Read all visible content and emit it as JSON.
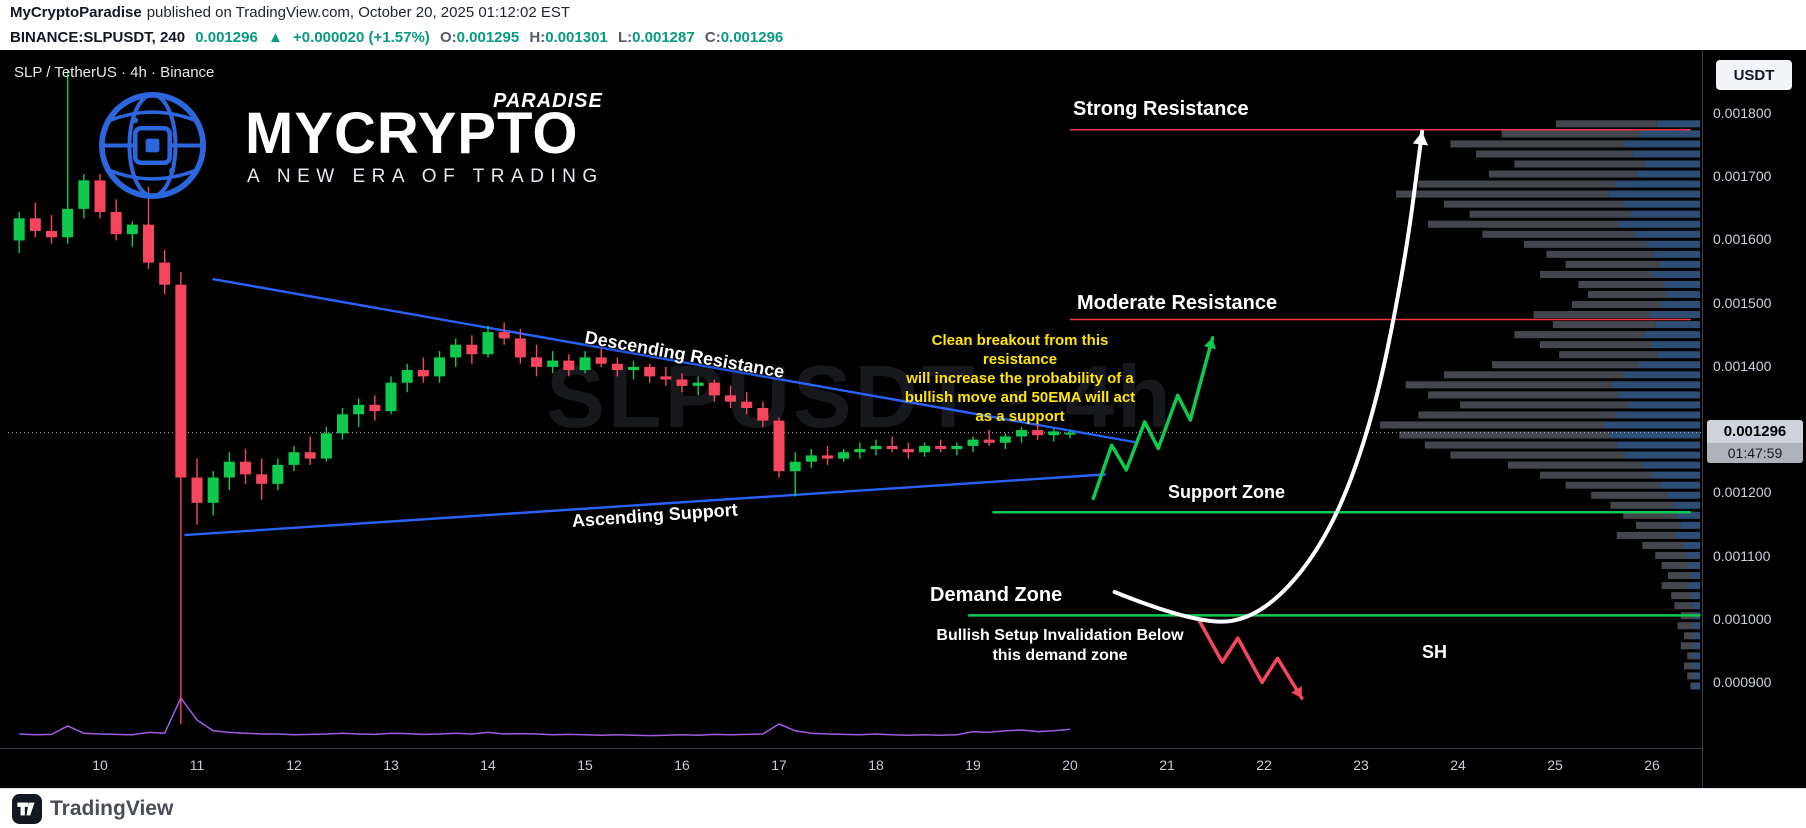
{
  "meta_bar": {
    "author": "MyCryptoParadise",
    "published": "published on TradingView.com, October 20, 2025 01:12:02 EST"
  },
  "symbol_bar": {
    "symbol": "BINANCE:SLPUSDT, 240",
    "last": "0.001296",
    "change_arrow": "▲",
    "change": "+0.000020 (+1.57%)",
    "o_label": "O:",
    "o": "0.001295",
    "h_label": "H:",
    "h": "0.001301",
    "l_label": "L:",
    "l": "0.001287",
    "c_label": "C:",
    "c": "0.001296"
  },
  "chart_header": {
    "legend": "SLP / TetherUS · 4h · Binance"
  },
  "logo": {
    "brand_top": "PARADISE",
    "brand_main": "MYCRYPTO",
    "tagline": "A NEW ERA OF TRADING"
  },
  "watermark": "SLPUSDT · 4h",
  "axis": {
    "currency_button": "USDT",
    "last_price_badge": {
      "price": "0.001296",
      "countdown": "01:47:59"
    }
  },
  "annotations": {
    "strong_resistance_label": "Strong Resistance",
    "moderate_resistance_label": "Moderate Resistance",
    "support_zone_label": "Support Zone",
    "demand_zone_label": "Demand Zone",
    "descending_resistance_label": "Descending Resistance",
    "ascending_support_label": "Ascending Support",
    "breakout_note_lines": [
      "Clean breakout from this resistance",
      "will increase the probability of a",
      "bullish move and 50EMA will act",
      "as a support"
    ],
    "invalidation_note_lines": [
      "Bullish Setup Invalidation Below",
      "this demand zone"
    ],
    "sh_label": "SH"
  },
  "footer": {
    "brand": "TradingView"
  },
  "colors": {
    "bullish": "#0ecb4e",
    "bearish": "#f6465d",
    "trendline": "#2962ff",
    "resistance": "#f23645",
    "support": "#0ecb4e",
    "note_yellow": "#ffe500",
    "volume_line": "#a05ce0",
    "header_green": "#089981"
  },
  "chart_data": {
    "type": "candlestick",
    "title": "SLP / TetherUS · 4h · Binance",
    "symbol": "BINANCE:SLPUSDT",
    "interval": "4h",
    "x_label": "October 2025 (day of month)",
    "y_range": [
      0.00082,
      0.00191
    ],
    "last_price": 0.001296,
    "first_candle_day": 9.1667,
    "candle_interval_days": 0.16667,
    "colors": {
      "up": "#0ecb4e",
      "down": "#f6465d"
    },
    "y_ticks": [
      {
        "label": "0.001800",
        "price": 0.0018
      },
      {
        "label": "0.001700",
        "price": 0.0017
      },
      {
        "label": "0.001600",
        "price": 0.0016
      },
      {
        "label": "0.001500",
        "price": 0.0015
      },
      {
        "label": "0.001400",
        "price": 0.0014
      },
      {
        "label": "0.001200",
        "price": 0.0012
      },
      {
        "label": "0.001100",
        "price": 0.0011
      },
      {
        "label": "0.001000",
        "price": 0.001
      },
      {
        "label": "0.000900",
        "price": 0.0009
      }
    ],
    "x_ticks": [
      {
        "label": "10",
        "day": 10
      },
      {
        "label": "11",
        "day": 11
      },
      {
        "label": "12",
        "day": 12
      },
      {
        "label": "13",
        "day": 13
      },
      {
        "label": "14",
        "day": 14
      },
      {
        "label": "15",
        "day": 15
      },
      {
        "label": "16",
        "day": 16
      },
      {
        "label": "17",
        "day": 17
      },
      {
        "label": "18",
        "day": 18
      },
      {
        "label": "19",
        "day": 19
      },
      {
        "label": "20",
        "day": 20
      },
      {
        "label": "21",
        "day": 21
      },
      {
        "label": "22",
        "day": 22
      },
      {
        "label": "23",
        "day": 23
      },
      {
        "label": "24",
        "day": 24
      },
      {
        "label": "25",
        "day": 25
      },
      {
        "label": "26",
        "day": 26
      }
    ],
    "candles": [
      [
        0.0016,
        0.001645,
        0.00158,
        0.001635
      ],
      [
        0.001635,
        0.00166,
        0.001605,
        0.001615
      ],
      [
        0.001615,
        0.00164,
        0.001595,
        0.001605
      ],
      [
        0.001605,
        0.00187,
        0.001595,
        0.00165
      ],
      [
        0.00165,
        0.001705,
        0.001635,
        0.001695
      ],
      [
        0.001695,
        0.001705,
        0.001635,
        0.001645
      ],
      [
        0.001645,
        0.001665,
        0.0016,
        0.00161
      ],
      [
        0.00161,
        0.00163,
        0.00159,
        0.001625
      ],
      [
        0.001625,
        0.001685,
        0.001555,
        0.001565
      ],
      [
        0.001565,
        0.001585,
        0.001515,
        0.00153
      ],
      [
        0.00153,
        0.00155,
        0.000835,
        0.001225
      ],
      [
        0.001225,
        0.001255,
        0.00115,
        0.001185
      ],
      [
        0.001185,
        0.001235,
        0.001165,
        0.001225
      ],
      [
        0.001225,
        0.001265,
        0.001205,
        0.00125
      ],
      [
        0.00125,
        0.00127,
        0.001215,
        0.00123
      ],
      [
        0.00123,
        0.001255,
        0.00119,
        0.001215
      ],
      [
        0.001215,
        0.001255,
        0.001205,
        0.001245
      ],
      [
        0.001245,
        0.001275,
        0.001235,
        0.001265
      ],
      [
        0.001265,
        0.00129,
        0.001245,
        0.001255
      ],
      [
        0.001255,
        0.001305,
        0.00125,
        0.001295
      ],
      [
        0.001295,
        0.001335,
        0.001285,
        0.001325
      ],
      [
        0.001325,
        0.00135,
        0.001305,
        0.00134
      ],
      [
        0.00134,
        0.001355,
        0.001315,
        0.00133
      ],
      [
        0.00133,
        0.001385,
        0.001325,
        0.001375
      ],
      [
        0.001375,
        0.001405,
        0.00136,
        0.001395
      ],
      [
        0.001395,
        0.001415,
        0.001375,
        0.001385
      ],
      [
        0.001385,
        0.001425,
        0.001375,
        0.001415
      ],
      [
        0.001415,
        0.001445,
        0.0014,
        0.001435
      ],
      [
        0.001435,
        0.00145,
        0.001405,
        0.00142
      ],
      [
        0.00142,
        0.001465,
        0.001415,
        0.001455
      ],
      [
        0.001455,
        0.00147,
        0.001435,
        0.001445
      ],
      [
        0.001445,
        0.00146,
        0.001405,
        0.001415
      ],
      [
        0.001415,
        0.001435,
        0.001385,
        0.0014
      ],
      [
        0.0014,
        0.001425,
        0.00139,
        0.00141
      ],
      [
        0.00141,
        0.00142,
        0.001385,
        0.001395
      ],
      [
        0.001395,
        0.001425,
        0.00139,
        0.001415
      ],
      [
        0.001415,
        0.00143,
        0.0014,
        0.001405
      ],
      [
        0.001405,
        0.001415,
        0.001385,
        0.001395
      ],
      [
        0.001395,
        0.00141,
        0.00138,
        0.0014
      ],
      [
        0.0014,
        0.001405,
        0.001375,
        0.001385
      ],
      [
        0.001385,
        0.0014,
        0.00137,
        0.00138
      ],
      [
        0.00138,
        0.00139,
        0.00136,
        0.00137
      ],
      [
        0.00137,
        0.001385,
        0.001355,
        0.001375
      ],
      [
        0.001375,
        0.00138,
        0.001345,
        0.001355
      ],
      [
        0.001355,
        0.00137,
        0.001335,
        0.001345
      ],
      [
        0.001345,
        0.00136,
        0.001325,
        0.001335
      ],
      [
        0.001335,
        0.001345,
        0.001305,
        0.001315
      ],
      [
        0.001315,
        0.00132,
        0.001225,
        0.001235
      ],
      [
        0.001235,
        0.001265,
        0.001195,
        0.00125
      ],
      [
        0.00125,
        0.00127,
        0.00124,
        0.00126
      ],
      [
        0.00126,
        0.001275,
        0.001245,
        0.001255
      ],
      [
        0.001255,
        0.00127,
        0.00125,
        0.001265
      ],
      [
        0.001265,
        0.00128,
        0.001255,
        0.00127
      ],
      [
        0.00127,
        0.001285,
        0.00126,
        0.001275
      ],
      [
        0.001275,
        0.00129,
        0.001265,
        0.00127
      ],
      [
        0.00127,
        0.00128,
        0.001255,
        0.001265
      ],
      [
        0.001265,
        0.00128,
        0.001258,
        0.001275
      ],
      [
        0.001275,
        0.001285,
        0.001265,
        0.00127
      ],
      [
        0.00127,
        0.00128,
        0.00126,
        0.001275
      ],
      [
        0.001275,
        0.00129,
        0.001265,
        0.001285
      ],
      [
        0.001285,
        0.0013,
        0.001275,
        0.00128
      ],
      [
        0.00128,
        0.001295,
        0.00127,
        0.00129
      ],
      [
        0.00129,
        0.001305,
        0.00128,
        0.0013
      ],
      [
        0.0013,
        0.00131,
        0.001285,
        0.001292
      ],
      [
        0.001292,
        0.001302,
        0.001282,
        0.001298
      ],
      [
        0.001295,
        0.001301,
        0.001287,
        0.001296
      ]
    ],
    "volume": [
      0.1,
      0.08,
      0.09,
      0.3,
      0.12,
      0.1,
      0.09,
      0.08,
      0.14,
      0.12,
      1.0,
      0.45,
      0.18,
      0.14,
      0.12,
      0.1,
      0.1,
      0.08,
      0.09,
      0.1,
      0.12,
      0.1,
      0.09,
      0.12,
      0.11,
      0.09,
      0.1,
      0.12,
      0.1,
      0.14,
      0.1,
      0.11,
      0.1,
      0.08,
      0.09,
      0.08,
      0.07,
      0.08,
      0.07,
      0.06,
      0.07,
      0.08,
      0.07,
      0.09,
      0.08,
      0.09,
      0.1,
      0.35,
      0.18,
      0.12,
      0.1,
      0.09,
      0.08,
      0.1,
      0.08,
      0.07,
      0.08,
      0.07,
      0.08,
      0.16,
      0.14,
      0.18,
      0.2,
      0.16,
      0.18,
      0.22
    ],
    "volume_profile": {
      "price_top": 0.00179,
      "price_bottom": 0.000885,
      "values": [
        0.45,
        0.62,
        0.78,
        0.7,
        0.58,
        0.66,
        0.88,
        0.95,
        0.8,
        0.72,
        0.85,
        0.68,
        0.55,
        0.48,
        0.42,
        0.5,
        0.38,
        0.35,
        0.4,
        0.52,
        0.46,
        0.58,
        0.5,
        0.44,
        0.65,
        0.8,
        0.92,
        0.85,
        0.75,
        0.88,
        1.0,
        0.94,
        0.86,
        0.78,
        0.6,
        0.5,
        0.42,
        0.34,
        0.28,
        0.24,
        0.2,
        0.26,
        0.18,
        0.14,
        0.12,
        0.1,
        0.12,
        0.09,
        0.08,
        0.06,
        0.07,
        0.05,
        0.06,
        0.04,
        0.05,
        0.04,
        0.03
      ]
    },
    "trendlines": [
      {
        "name": "descending-resistance",
        "from_day": 11.16,
        "from_price": 0.001539,
        "to_day": 20.67,
        "to_price": 0.001281,
        "color": "#2962ff"
      },
      {
        "name": "ascending-support",
        "from_day": 10.87,
        "from_price": 0.001134,
        "to_day": 20.37,
        "to_price": 0.00123,
        "color": "#2962ff"
      }
    ],
    "levels": [
      {
        "name": "strong-resistance",
        "price": 0.001775,
        "from_day": 20.0,
        "to_day": 26.4,
        "color": "#f23645",
        "width": 1.5
      },
      {
        "name": "moderate-resistance",
        "price": 0.001475,
        "from_day": 20.0,
        "to_day": 26.4,
        "color": "#f23645",
        "width": 1.5
      },
      {
        "name": "support-zone",
        "price": 0.00117,
        "from_day": 19.2,
        "to_day": 26.4,
        "color": "#0ecb4e",
        "width": 2.5
      },
      {
        "name": "demand-zone",
        "price": 0.001007,
        "from_day": 18.95,
        "to_day": 26.5,
        "color": "#0ecb4e",
        "width": 2.5
      }
    ],
    "drawings": {
      "bullish_zigzag_day_price": [
        [
          20.24,
          0.001192
        ],
        [
          20.43,
          0.001276
        ],
        [
          20.58,
          0.001237
        ],
        [
          20.77,
          0.001313
        ],
        [
          20.91,
          0.001271
        ],
        [
          21.11,
          0.001355
        ],
        [
          21.24,
          0.001316
        ],
        [
          21.47,
          0.001446
        ]
      ],
      "bearish_zigzag_day_price": [
        [
          21.32,
          0.001002
        ],
        [
          21.57,
          0.000933
        ],
        [
          21.73,
          0.000971
        ],
        [
          21.98,
          0.000901
        ],
        [
          22.14,
          0.000939
        ],
        [
          22.39,
          0.000876
        ]
      ],
      "projection_curve_day_price": [
        [
          20.46,
          0.001044
        ],
        [
          21.2,
          0.000998
        ],
        [
          21.9,
          0.000996
        ],
        [
          22.6,
          0.00111
        ],
        [
          23.1,
          0.0013
        ],
        [
          23.45,
          0.00156
        ],
        [
          23.63,
          0.001772
        ]
      ]
    }
  }
}
